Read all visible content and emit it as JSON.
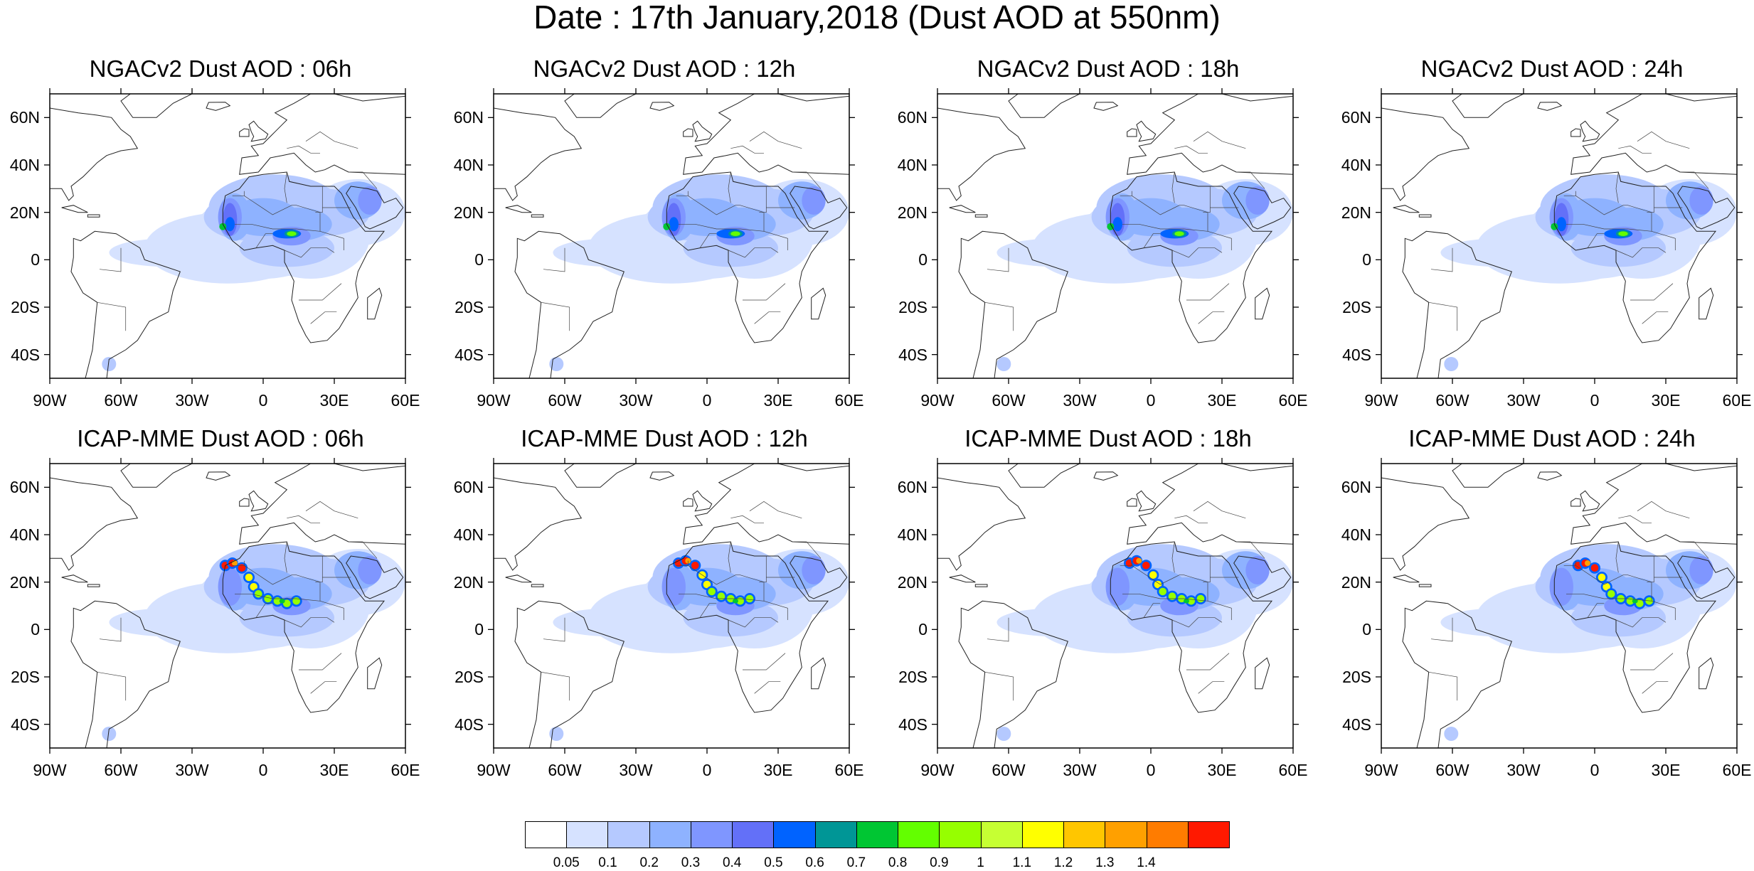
{
  "title": "Date : 17th January,2018 (Dust AOD at 550nm)",
  "panels": [
    {
      "title": "NGACv2 Dust AOD : 06h",
      "model": "NGACv2",
      "hour": "06h",
      "plume": "weak",
      "shift": 0
    },
    {
      "title": "NGACv2 Dust AOD : 12h",
      "model": "NGACv2",
      "hour": "12h",
      "plume": "weak",
      "shift": 1
    },
    {
      "title": "NGACv2 Dust AOD : 18h",
      "model": "NGACv2",
      "hour": "18h",
      "plume": "weak",
      "shift": 2
    },
    {
      "title": "NGACv2 Dust AOD : 24h",
      "model": "NGACv2",
      "hour": "24h",
      "plume": "weak",
      "shift": 3
    },
    {
      "title": "ICAP-MME Dust AOD : 06h",
      "model": "ICAP-MME",
      "hour": "06h",
      "plume": "strong",
      "shift": 0
    },
    {
      "title": "ICAP-MME Dust AOD : 12h",
      "model": "ICAP-MME",
      "hour": "12h",
      "plume": "strong",
      "shift": 1
    },
    {
      "title": "ICAP-MME Dust AOD : 18h",
      "model": "ICAP-MME",
      "hour": "18h",
      "plume": "strong",
      "shift": 2
    },
    {
      "title": "ICAP-MME Dust AOD : 24h",
      "model": "ICAP-MME",
      "hour": "24h",
      "plume": "strong",
      "shift": 3
    }
  ],
  "map_extent": {
    "lon": [
      -90,
      60
    ],
    "lat": [
      -50,
      70
    ]
  },
  "lat_ticks": [
    {
      "value": 60,
      "label": "60N"
    },
    {
      "value": 40,
      "label": "40N"
    },
    {
      "value": 20,
      "label": "20N"
    },
    {
      "value": 0,
      "label": "0"
    },
    {
      "value": -20,
      "label": "20S"
    },
    {
      "value": -40,
      "label": "40S"
    }
  ],
  "lon_ticks": [
    {
      "value": -90,
      "label": "90W"
    },
    {
      "value": -60,
      "label": "60W"
    },
    {
      "value": -30,
      "label": "30W"
    },
    {
      "value": 0,
      "label": "0"
    },
    {
      "value": 30,
      "label": "30E"
    },
    {
      "value": 60,
      "label": "60E"
    }
  ],
  "colorbar": {
    "colors": [
      "#ffffff",
      "#d6e2ff",
      "#b5c9ff",
      "#8eb2ff",
      "#7f96ff",
      "#6370f8",
      "#0063ff",
      "#009696",
      "#00c633",
      "#63ff00",
      "#96ff00",
      "#c6ff33",
      "#ffff00",
      "#ffc600",
      "#ffa000",
      "#ff7c00",
      "#ff1900"
    ],
    "labels": [
      "0.05",
      "0.1",
      "0.2",
      "0.3",
      "0.4",
      "0.5",
      "0.6",
      "0.7",
      "0.8",
      "0.9",
      "1",
      "1.1",
      "1.2",
      "1.3",
      "1.4"
    ]
  }
}
